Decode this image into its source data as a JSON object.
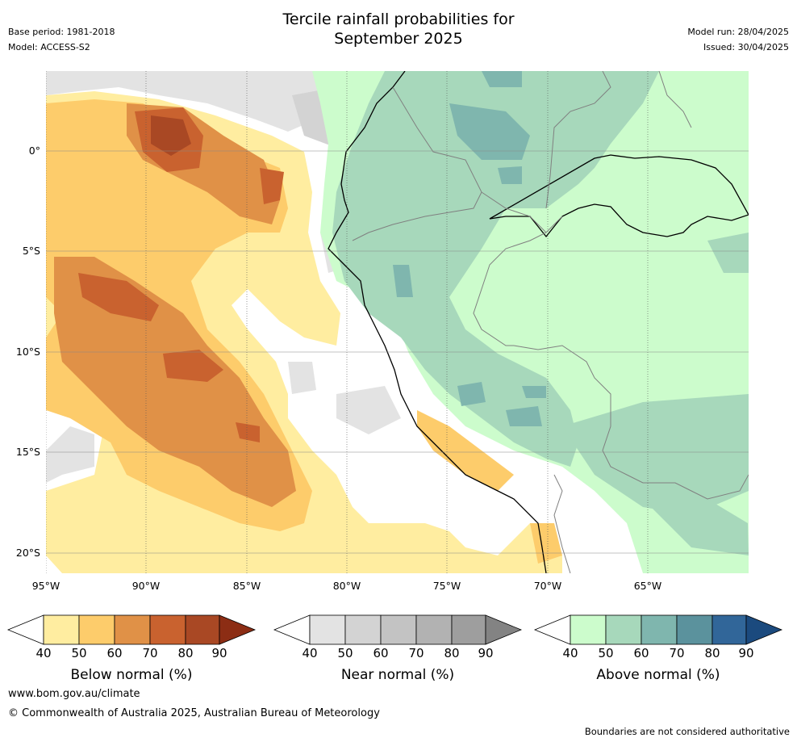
{
  "title_line1": "Tercile rainfall probabilities for",
  "title_line2": "September 2025",
  "base_period": "Base period: 1981-2018",
  "model": "Model: ACCESS-S2",
  "model_run": "Model run: 28/04/2025",
  "issued": "Issued: 30/04/2025",
  "lat_labels": [
    "0°",
    "5°S",
    "10°S",
    "15°S",
    "20°S"
  ],
  "lon_labels": [
    "95°W",
    "90°W",
    "85°W",
    "80°W",
    "75°W",
    "70°W",
    "65°W"
  ],
  "legends": [
    {
      "title": "Below normal (%)",
      "ticks": [
        "40",
        "50",
        "60",
        "70",
        "80",
        "90"
      ],
      "colors": [
        "#ffeda0",
        "#fdcc6b",
        "#e09147",
        "#c9622f",
        "#a94824",
        "#8c2d14"
      ]
    },
    {
      "title": "Near normal (%)",
      "ticks": [
        "40",
        "50",
        "60",
        "70",
        "80",
        "90"
      ],
      "colors": [
        "#e3e3e3",
        "#d3d3d3",
        "#c3c3c3",
        "#b2b2b2",
        "#9e9e9e",
        "#838383"
      ]
    },
    {
      "title": "Above normal (%)",
      "ticks": [
        "40",
        "50",
        "60",
        "70",
        "80",
        "90"
      ],
      "colors": [
        "#ccfccc",
        "#a7d8bb",
        "#7fb6ae",
        "#5b929d",
        "#316699",
        "#1b4a7e"
      ]
    }
  ],
  "website": "www.bom.gov.au/climate",
  "copyright": "© Commonwealth of Australia 2025, Australian Bureau of Meteorology",
  "disclaimer": "Boundaries are not considered authoritative",
  "colors": {
    "below_40_50": "#ffeda0",
    "below_50_60": "#fdcc6b",
    "below_60_70": "#e09147",
    "below_70_80": "#c9622f",
    "below_80_90": "#a94824",
    "near_40_50": "#e3e3e3",
    "near_50_60": "#d3d3d3",
    "above_40_50": "#ccfccc",
    "above_50_60": "#a7d8bb",
    "above_60_70": "#7fb6ae",
    "above_70_80": "#5b929d"
  }
}
